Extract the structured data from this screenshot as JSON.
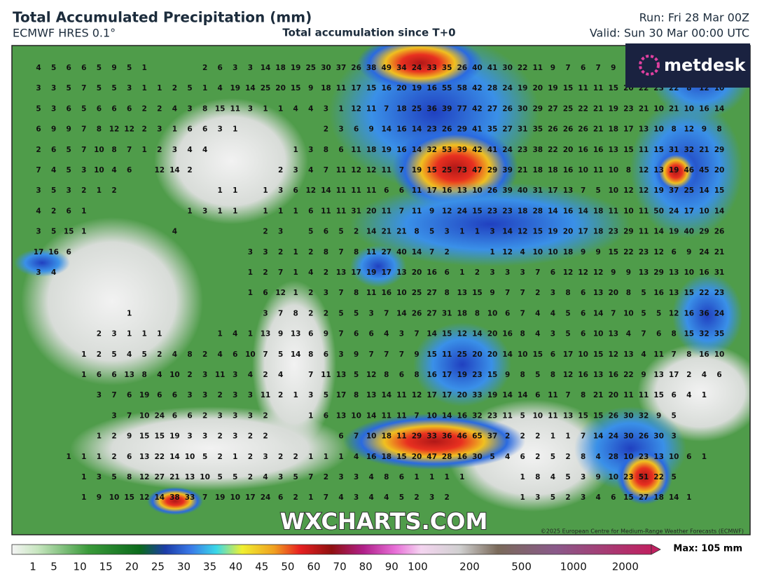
{
  "header": {
    "title": "Total Accumulated Precipitation (mm)",
    "model": "ECMWF HRES 0.1°",
    "subtitle": "Total accumulation since T+0",
    "run": "Run: Fri 28 Mar 00Z",
    "valid": "Valid: Sun 30 Mar 00:00 UTC"
  },
  "logo": "metdesk",
  "watermark": "WXCHARTS.COM",
  "copyright": "©2025 European Centre for Medium-Range Weather Forecasts (ECMWF)",
  "map": {
    "grid": [
      [
        4,
        5,
        6,
        6,
        5,
        9,
        5,
        1,
        null,
        null,
        null,
        2,
        6,
        3,
        3,
        14,
        18,
        19,
        25,
        30,
        37,
        26,
        38,
        49,
        34,
        24,
        33,
        35,
        26,
        40,
        41,
        30,
        22,
        11,
        9,
        7,
        6,
        7,
        9,
        null,
        null,
        null,
        null,
        null,
        null,
        null
      ],
      [
        3,
        3,
        5,
        7,
        5,
        5,
        3,
        1,
        1,
        2,
        5,
        1,
        4,
        19,
        14,
        25,
        20,
        15,
        9,
        18,
        11,
        17,
        15,
        16,
        20,
        19,
        16,
        55,
        58,
        42,
        28,
        24,
        19,
        20,
        19,
        15,
        11,
        11,
        15,
        20,
        22,
        23,
        22,
        8,
        12,
        10
      ],
      [
        5,
        3,
        6,
        5,
        6,
        6,
        6,
        2,
        2,
        4,
        3,
        8,
        15,
        11,
        3,
        1,
        1,
        4,
        4,
        3,
        1,
        12,
        11,
        7,
        18,
        25,
        36,
        39,
        77,
        42,
        27,
        26,
        30,
        29,
        27,
        25,
        22,
        21,
        19,
        23,
        21,
        10,
        21,
        10,
        16,
        14
      ],
      [
        6,
        9,
        9,
        7,
        8,
        12,
        12,
        2,
        3,
        1,
        6,
        6,
        3,
        1,
        null,
        null,
        null,
        null,
        null,
        2,
        3,
        6,
        9,
        14,
        16,
        14,
        23,
        26,
        29,
        41,
        35,
        27,
        31,
        35,
        26,
        26,
        26,
        21,
        18,
        17,
        13,
        10,
        8,
        12,
        9,
        8
      ],
      [
        2,
        6,
        5,
        7,
        10,
        8,
        7,
        1,
        2,
        3,
        4,
        4,
        null,
        null,
        null,
        null,
        null,
        1,
        3,
        8,
        6,
        11,
        18,
        19,
        16,
        14,
        32,
        53,
        39,
        42,
        41,
        24,
        23,
        38,
        22,
        20,
        16,
        16,
        13,
        15,
        11,
        15,
        31,
        32,
        21,
        29
      ],
      [
        7,
        4,
        5,
        3,
        10,
        4,
        6,
        null,
        12,
        14,
        2,
        null,
        null,
        null,
        null,
        null,
        2,
        3,
        4,
        7,
        11,
        12,
        12,
        11,
        7,
        19,
        15,
        25,
        73,
        47,
        29,
        39,
        21,
        18,
        18,
        16,
        10,
        11,
        10,
        8,
        12,
        13,
        19,
        46,
        45,
        20
      ],
      [
        3,
        5,
        3,
        2,
        1,
        2,
        null,
        null,
        null,
        null,
        null,
        null,
        1,
        1,
        null,
        1,
        3,
        6,
        12,
        14,
        11,
        11,
        11,
        6,
        6,
        11,
        17,
        16,
        13,
        10,
        26,
        39,
        40,
        31,
        17,
        13,
        7,
        5,
        10,
        12,
        12,
        19,
        37,
        25,
        14,
        15
      ],
      [
        4,
        2,
        6,
        1,
        null,
        null,
        null,
        null,
        null,
        null,
        1,
        3,
        1,
        1,
        null,
        1,
        1,
        1,
        6,
        11,
        11,
        31,
        20,
        11,
        7,
        11,
        9,
        12,
        24,
        15,
        23,
        23,
        18,
        28,
        14,
        16,
        14,
        18,
        11,
        10,
        11,
        50,
        24,
        17,
        10,
        14
      ],
      [
        3,
        5,
        15,
        1,
        null,
        null,
        null,
        null,
        null,
        4,
        null,
        null,
        null,
        null,
        null,
        2,
        3,
        null,
        5,
        6,
        5,
        2,
        14,
        21,
        21,
        8,
        5,
        3,
        1,
        1,
        3,
        14,
        12,
        15,
        19,
        20,
        17,
        18,
        23,
        29,
        11,
        14,
        19,
        40,
        29,
        26
      ],
      [
        17,
        16,
        6,
        null,
        null,
        null,
        null,
        null,
        null,
        null,
        null,
        null,
        null,
        null,
        3,
        3,
        2,
        1,
        2,
        8,
        7,
        8,
        11,
        27,
        40,
        14,
        7,
        2,
        null,
        null,
        1,
        12,
        4,
        10,
        10,
        18,
        9,
        9,
        15,
        22,
        23,
        12,
        6,
        9,
        24,
        21
      ],
      [
        3,
        4,
        null,
        null,
        null,
        null,
        null,
        null,
        null,
        null,
        null,
        null,
        null,
        null,
        1,
        2,
        7,
        1,
        4,
        2,
        13,
        17,
        19,
        17,
        13,
        20,
        16,
        6,
        1,
        2,
        3,
        3,
        3,
        7,
        6,
        12,
        12,
        12,
        9,
        9,
        13,
        29,
        13,
        10,
        16,
        31
      ],
      [
        null,
        null,
        null,
        null,
        null,
        null,
        null,
        null,
        null,
        null,
        null,
        null,
        null,
        null,
        1,
        6,
        12,
        1,
        2,
        3,
        7,
        8,
        11,
        16,
        10,
        25,
        27,
        8,
        13,
        15,
        9,
        7,
        7,
        2,
        3,
        8,
        6,
        13,
        20,
        8,
        5,
        16,
        13,
        15,
        22,
        23
      ],
      [
        null,
        null,
        null,
        null,
        null,
        null,
        1,
        null,
        null,
        null,
        null,
        null,
        null,
        null,
        null,
        3,
        7,
        8,
        2,
        2,
        5,
        5,
        3,
        7,
        14,
        26,
        27,
        31,
        18,
        8,
        10,
        6,
        7,
        4,
        4,
        5,
        6,
        14,
        7,
        10,
        5,
        5,
        12,
        16,
        36,
        24
      ],
      [
        null,
        null,
        null,
        null,
        2,
        3,
        1,
        1,
        1,
        null,
        null,
        null,
        1,
        4,
        1,
        13,
        9,
        13,
        6,
        9,
        7,
        6,
        6,
        4,
        3,
        7,
        14,
        15,
        12,
        14,
        20,
        16,
        8,
        4,
        3,
        5,
        6,
        10,
        13,
        4,
        7,
        6,
        8,
        15,
        32,
        35
      ],
      [
        null,
        null,
        null,
        1,
        2,
        5,
        4,
        5,
        2,
        4,
        8,
        2,
        4,
        6,
        10,
        7,
        5,
        14,
        8,
        6,
        3,
        9,
        7,
        7,
        7,
        9,
        15,
        11,
        25,
        20,
        20,
        14,
        10,
        15,
        6,
        17,
        10,
        15,
        12,
        13,
        4,
        11,
        7,
        8,
        16,
        10
      ],
      [
        null,
        null,
        null,
        1,
        6,
        6,
        13,
        8,
        4,
        10,
        2,
        3,
        11,
        3,
        4,
        2,
        4,
        null,
        7,
        11,
        13,
        5,
        12,
        8,
        6,
        8,
        16,
        17,
        19,
        23,
        15,
        9,
        8,
        5,
        8,
        12,
        16,
        13,
        16,
        22,
        9,
        13,
        17,
        2,
        4,
        6
      ],
      [
        null,
        null,
        null,
        null,
        3,
        7,
        6,
        19,
        6,
        6,
        3,
        3,
        2,
        3,
        3,
        11,
        2,
        1,
        3,
        5,
        17,
        8,
        13,
        14,
        11,
        12,
        17,
        17,
        20,
        33,
        19,
        14,
        14,
        6,
        11,
        7,
        8,
        21,
        20,
        11,
        11,
        15,
        6,
        4,
        1,
        null
      ],
      [
        null,
        null,
        null,
        null,
        null,
        3,
        7,
        10,
        24,
        6,
        6,
        2,
        3,
        3,
        3,
        2,
        null,
        null,
        1,
        6,
        13,
        10,
        14,
        11,
        11,
        7,
        10,
        14,
        16,
        32,
        23,
        11,
        5,
        10,
        11,
        13,
        15,
        15,
        26,
        30,
        32,
        9,
        5,
        null,
        null,
        null
      ],
      [
        null,
        null,
        null,
        null,
        1,
        2,
        9,
        15,
        15,
        19,
        3,
        3,
        2,
        3,
        2,
        2,
        null,
        null,
        null,
        null,
        6,
        7,
        10,
        18,
        11,
        29,
        33,
        36,
        46,
        65,
        37,
        2,
        2,
        2,
        1,
        1,
        7,
        14,
        24,
        30,
        26,
        30,
        3,
        null,
        null,
        null
      ],
      [
        null,
        null,
        1,
        1,
        1,
        2,
        6,
        13,
        22,
        14,
        10,
        5,
        2,
        1,
        2,
        3,
        2,
        2,
        1,
        1,
        1,
        4,
        16,
        18,
        15,
        20,
        47,
        28,
        16,
        30,
        5,
        4,
        6,
        2,
        5,
        2,
        8,
        4,
        28,
        10,
        23,
        13,
        10,
        6,
        1,
        null
      ],
      [
        null,
        null,
        null,
        1,
        3,
        5,
        8,
        12,
        27,
        21,
        13,
        10,
        5,
        5,
        2,
        4,
        3,
        5,
        7,
        2,
        3,
        3,
        4,
        8,
        6,
        1,
        1,
        1,
        1,
        null,
        null,
        null,
        1,
        8,
        4,
        5,
        3,
        9,
        10,
        23,
        51,
        22,
        5,
        null,
        null,
        null
      ],
      [
        null,
        null,
        null,
        1,
        9,
        10,
        15,
        12,
        14,
        38,
        33,
        7,
        19,
        10,
        17,
        24,
        6,
        2,
        1,
        7,
        4,
        3,
        4,
        4,
        5,
        2,
        3,
        2,
        null,
        null,
        null,
        null,
        1,
        3,
        5,
        2,
        3,
        4,
        6,
        15,
        27,
        18,
        14,
        1,
        null,
        null
      ]
    ]
  },
  "colorbar": {
    "labels": [
      1,
      5,
      10,
      15,
      20,
      25,
      30,
      35,
      40,
      45,
      50,
      60,
      70,
      80,
      90,
      100,
      200,
      500,
      1000,
      2000
    ],
    "max_label": "Max: 105 mm"
  }
}
